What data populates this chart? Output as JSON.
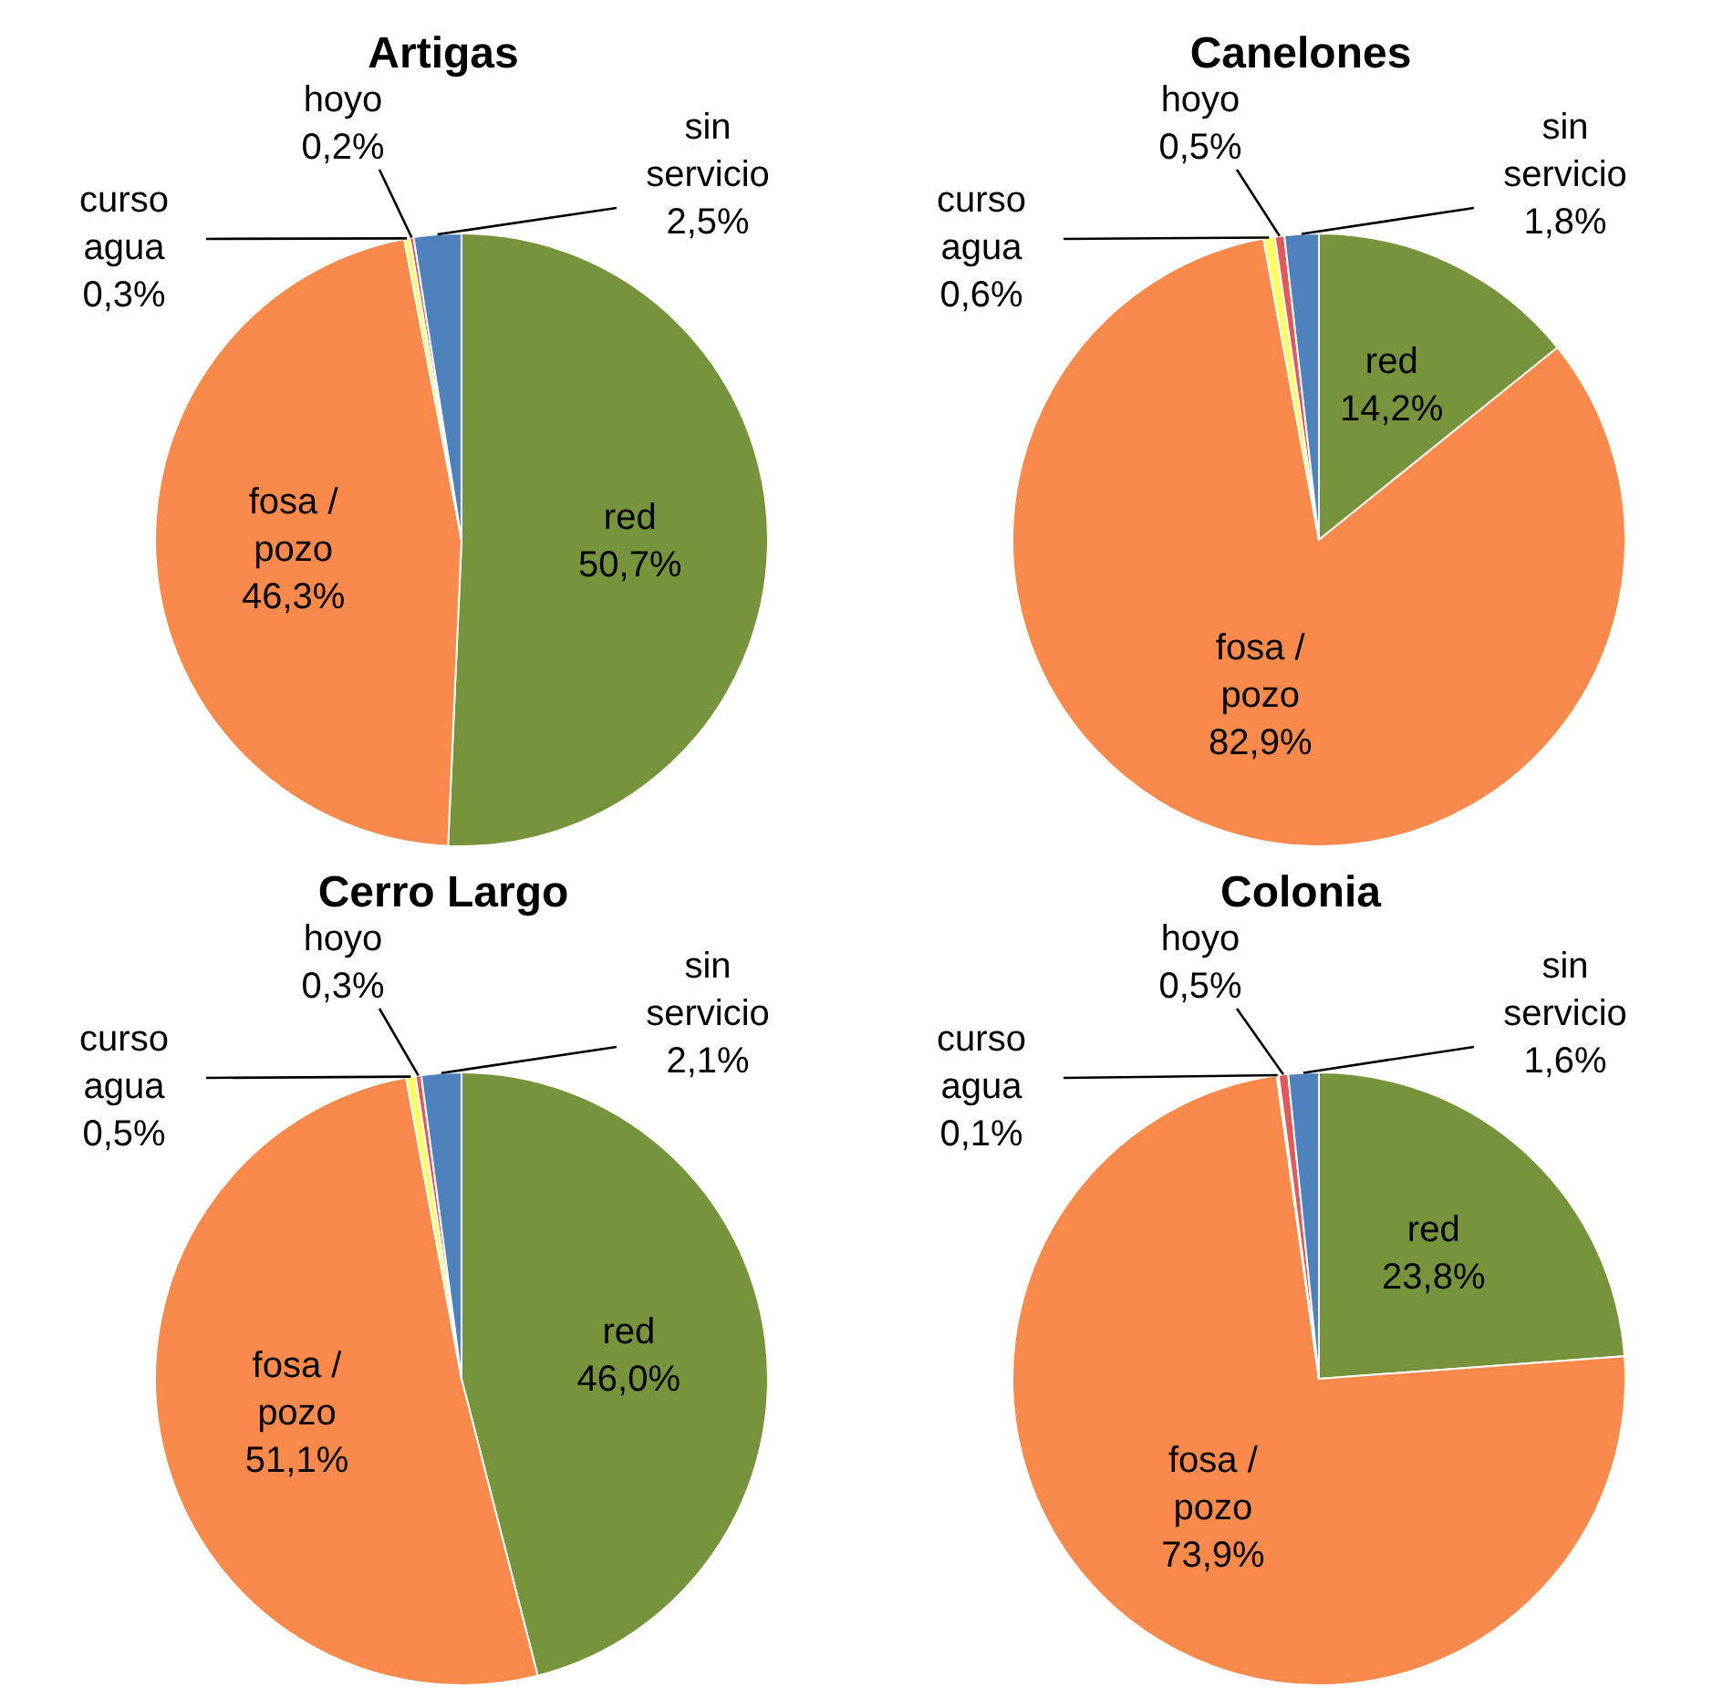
{
  "chart_data": [
    {
      "type": "pie",
      "title": "Artigas",
      "categories": [
        "red",
        "fosa / pozo",
        "curso agua",
        "hoyo",
        "sin servicio"
      ],
      "values": [
        50.7,
        46.3,
        0.3,
        0.2,
        2.5
      ],
      "value_labels": [
        "50,7%",
        "46,3%",
        "0,3%",
        "0,2%",
        "2,5%"
      ],
      "colors": [
        "#77933c",
        "#f98a4c",
        "#ffff66",
        "#e05a5a",
        "#4f81bd"
      ],
      "legend": false
    },
    {
      "type": "pie",
      "title": "Canelones",
      "categories": [
        "red",
        "fosa / pozo",
        "curso agua",
        "hoyo",
        "sin servicio"
      ],
      "values": [
        14.2,
        82.9,
        0.6,
        0.5,
        1.8
      ],
      "value_labels": [
        "14,2%",
        "82,9%",
        "0,6%",
        "0,5%",
        "1,8%"
      ],
      "colors": [
        "#77933c",
        "#f98a4c",
        "#ffff66",
        "#e05a5a",
        "#4f81bd"
      ],
      "legend": false
    },
    {
      "type": "pie",
      "title": "Cerro Largo",
      "categories": [
        "red",
        "fosa / pozo",
        "curso agua",
        "hoyo",
        "sin servicio"
      ],
      "values": [
        46.0,
        51.1,
        0.5,
        0.3,
        2.1
      ],
      "value_labels": [
        "46,0%",
        "51,1%",
        "0,5%",
        "0,3%",
        "2,1%"
      ],
      "colors": [
        "#77933c",
        "#f98a4c",
        "#ffff66",
        "#e05a5a",
        "#4f81bd"
      ],
      "legend": false
    },
    {
      "type": "pie",
      "title": "Colonia",
      "categories": [
        "red",
        "fosa / pozo",
        "curso agua",
        "hoyo",
        "sin servicio"
      ],
      "values": [
        23.8,
        73.9,
        0.1,
        0.5,
        1.6
      ],
      "value_labels": [
        "23,8%",
        "73,9%",
        "0,1%",
        "0,5%",
        "1,6%"
      ],
      "colors": [
        "#77933c",
        "#f98a4c",
        "#ffff66",
        "#e05a5a",
        "#4f81bd"
      ],
      "legend": false
    }
  ]
}
